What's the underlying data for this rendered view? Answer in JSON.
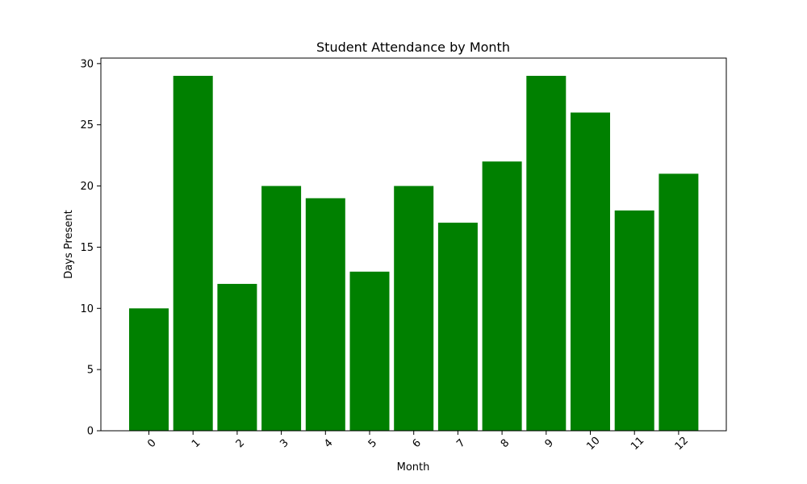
{
  "chart_data": {
    "type": "bar",
    "title": "Student Attendance by Month",
    "xlabel": "Month",
    "ylabel": "Days Present",
    "categories": [
      "0",
      "1",
      "2",
      "3",
      "4",
      "5",
      "6",
      "7",
      "8",
      "9",
      "10",
      "11",
      "12"
    ],
    "values": [
      10,
      29,
      12,
      20,
      19,
      13,
      20,
      17,
      22,
      29,
      26,
      18,
      21
    ],
    "ylim": [
      0,
      30.45
    ],
    "yticks": [
      "0",
      "5",
      "10",
      "15",
      "20",
      "25",
      "30"
    ],
    "xtick_rotation": "45 degrees",
    "grid": false,
    "legend": "none",
    "bar_color": "#008000"
  }
}
